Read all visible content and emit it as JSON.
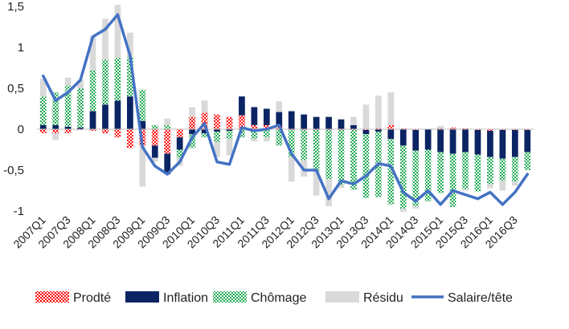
{
  "chart_data": {
    "type": "bar",
    "stacked": true,
    "title": "",
    "xlabel": "",
    "ylabel": "",
    "ylim": [
      -1,
      1.5
    ],
    "yticks": [
      -1,
      -0.5,
      0,
      0.5,
      1,
      1.5
    ],
    "ytick_labels": [
      "-1",
      "-0,5",
      "0",
      "0,5",
      "1",
      "1,5"
    ],
    "grid": false,
    "legend_position": "bottom",
    "categories": [
      "2007Q1",
      "2007Q2",
      "2007Q3",
      "2007Q4",
      "2008Q1",
      "2008Q2",
      "2008Q3",
      "2008Q4",
      "2009Q1",
      "2009Q2",
      "2009Q3",
      "2009Q4",
      "2010Q1",
      "2010Q2",
      "2010Q3",
      "2010Q4",
      "2011Q1",
      "2011Q2",
      "2011Q3",
      "2011Q4",
      "2012Q1",
      "2012Q2",
      "2012Q3",
      "2012Q4",
      "2013Q1",
      "2013Q2",
      "2013Q3",
      "2013Q4",
      "2014Q1",
      "2014Q2",
      "2014Q3",
      "2014Q4",
      "2015Q1",
      "2015Q2",
      "2015Q3",
      "2015Q4",
      "2016Q1",
      "2016Q2",
      "2016Q3",
      "2016Q4"
    ],
    "xtick_labels": [
      "2007Q1",
      "",
      "2007Q3",
      "",
      "2008Q1",
      "",
      "2008Q3",
      "",
      "2009Q1",
      "",
      "2009Q3",
      "",
      "2010Q1",
      "",
      "2010Q3",
      "",
      "2011Q1",
      "",
      "2011Q3",
      "",
      "2012Q1",
      "",
      "2012Q3",
      "",
      "2013Q1",
      "",
      "2013Q3",
      "",
      "2014Q1",
      "",
      "2014Q3",
      "",
      "2015Q1",
      "",
      "2015Q3",
      "",
      "2016Q1",
      "",
      "2016Q3",
      ""
    ],
    "series": [
      {
        "name": "Prodté",
        "kind": "bar",
        "color": "#ff0000",
        "pattern": "dots-red",
        "values": [
          -0.05,
          -0.05,
          -0.05,
          -0.01,
          -0.02,
          -0.05,
          -0.1,
          -0.23,
          -0.2,
          -0.2,
          -0.3,
          -0.1,
          0.15,
          0.2,
          0.18,
          0.15,
          0.17,
          0.05,
          0.05,
          0.03,
          -0.01,
          -0.01,
          -0.01,
          -0.01,
          -0.01,
          -0.01,
          -0.01,
          0.01,
          0.05,
          0.01,
          -0.01,
          0.0,
          0.01,
          0.02,
          0.01,
          -0.01,
          -0.02,
          -0.01,
          -0.01,
          -0.01
        ]
      },
      {
        "name": "Inflation",
        "kind": "bar",
        "color": "#0b2463",
        "values": [
          0.05,
          0.05,
          0.03,
          0.02,
          0.22,
          0.3,
          0.35,
          0.4,
          0.1,
          -0.15,
          -0.25,
          -0.15,
          -0.06,
          -0.05,
          -0.03,
          -0.02,
          0.23,
          0.22,
          0.2,
          0.18,
          0.22,
          0.18,
          0.15,
          0.15,
          0.12,
          0.05,
          -0.05,
          -0.03,
          -0.12,
          -0.2,
          -0.25,
          -0.25,
          -0.28,
          -0.3,
          -0.28,
          -0.3,
          -0.32,
          -0.35,
          -0.33,
          -0.27
        ]
      },
      {
        "name": "Chômage",
        "kind": "bar",
        "color": "#22aa55",
        "pattern": "dots-green",
        "values": [
          0.35,
          0.4,
          0.5,
          0.48,
          0.5,
          0.55,
          0.52,
          0.48,
          0.38,
          0.05,
          0.05,
          -0.1,
          -0.17,
          -0.05,
          -0.13,
          -0.1,
          -0.1,
          -0.12,
          -0.1,
          -0.2,
          -0.33,
          -0.37,
          -0.5,
          -0.6,
          -0.67,
          -0.73,
          -0.78,
          -0.8,
          -0.8,
          -0.77,
          -0.68,
          -0.63,
          -0.5,
          -0.65,
          -0.45,
          -0.45,
          -0.33,
          -0.27,
          -0.3,
          -0.22
        ]
      },
      {
        "name": "Résidu",
        "kind": "bar",
        "color": "#d9d9d9",
        "values": [
          0.22,
          -0.08,
          0.1,
          0.1,
          0.42,
          0.5,
          0.65,
          0.3,
          -0.5,
          -0.05,
          0.08,
          -0.1,
          0.12,
          0.15,
          -0.18,
          -0.2,
          0.0,
          -0.03,
          -0.05,
          0.13,
          -0.3,
          -0.2,
          -0.3,
          -0.33,
          -0.04,
          0.1,
          0.3,
          0.4,
          0.4,
          -0.04,
          -0.03,
          0.0,
          0.03,
          0.0,
          -0.02,
          0.0,
          -0.05,
          -0.12,
          -0.05,
          0.0
        ]
      },
      {
        "name": "Salaire/tête",
        "kind": "line",
        "color": "#4472c4",
        "values": [
          0.65,
          0.35,
          0.45,
          0.6,
          1.13,
          1.22,
          1.4,
          0.9,
          -0.22,
          -0.45,
          -0.55,
          -0.4,
          -0.1,
          0.07,
          -0.4,
          -0.43,
          0.02,
          -0.02,
          0.0,
          0.05,
          -0.3,
          -0.5,
          -0.5,
          -0.85,
          -0.63,
          -0.67,
          -0.57,
          -0.42,
          -0.45,
          -0.77,
          -0.88,
          -0.75,
          -0.92,
          -0.75,
          -0.8,
          -0.85,
          -0.77,
          -0.92,
          -0.77,
          -0.55
        ]
      }
    ]
  }
}
